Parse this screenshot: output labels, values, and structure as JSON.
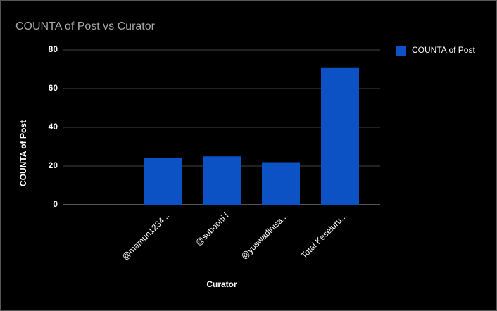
{
  "chart_data": {
    "type": "bar",
    "title": "COUNTA of Post vs Curator",
    "x_label": "Curator",
    "y_label": "COUNTA of Post",
    "categories": [
      null,
      "@mamun1234...",
      "@suboohi l",
      "@yuswadinisa...",
      "Total Keseluru..."
    ],
    "series": [
      {
        "name": "COUNTA of Post",
        "color": "#0d52c4",
        "values": [
          null,
          24,
          25,
          22,
          71
        ]
      }
    ],
    "ylim": [
      0,
      80
    ],
    "yticks": [
      0,
      20,
      40,
      60,
      80
    ],
    "grid": true,
    "legend": "right"
  }
}
